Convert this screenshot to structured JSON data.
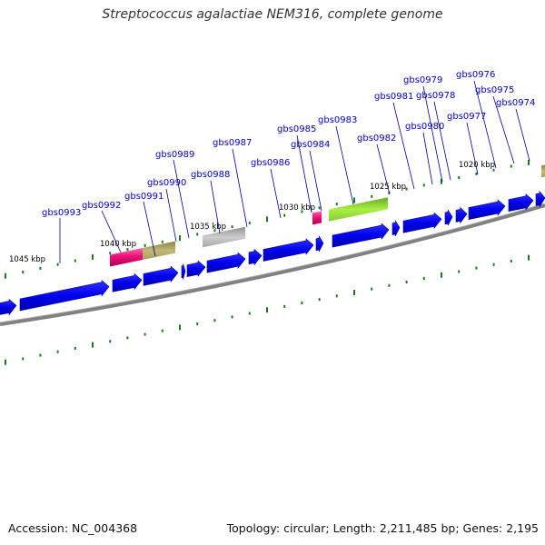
{
  "title": "Streptococcus agalactiae NEM316, complete genome",
  "footer": {
    "accession": "Accession: NC_004368",
    "summary": "Topology: circular; Length: 2,211,485 bp; Genes: 2,195"
  },
  "colors": {
    "forward_gene": "#0000ee",
    "backbone": "#808080",
    "gene_label": "#0000cc",
    "tick": "#1a7a1a",
    "scale_label": "#000000",
    "feature_pink": "#ee1177",
    "feature_olive": "#b3a860",
    "feature_gray": "#b0b0b0",
    "feature_lime": "#99ee33"
  },
  "scale_labels": [
    "1045 kbp",
    "1040 kbp",
    "1035 kbp",
    "1030 kbp",
    "1025 kbp",
    "1020 kbp"
  ],
  "gene_labels": [
    "gbs0993",
    "gbs0992",
    "gbs0991",
    "gbs0990",
    "gbs0989",
    "gbs0988",
    "gbs0987",
    "gbs0986",
    "gbs0985",
    "gbs0984",
    "gbs0983",
    "gbs0982",
    "gbs0981",
    "gbs0980",
    "gbs0979",
    "gbs0978",
    "gbs0977",
    "gbs0976",
    "gbs0975",
    "gbs0974"
  ]
}
